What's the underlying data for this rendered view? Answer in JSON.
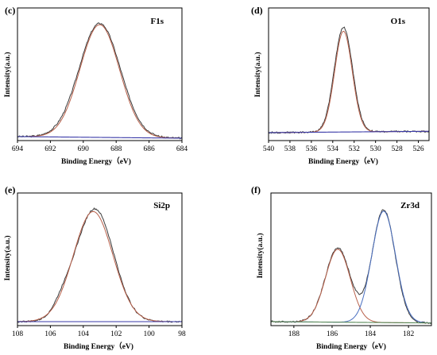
{
  "chart_data": [
    {
      "type": "line",
      "panel": "(c)",
      "title": "F1s",
      "xlabel": "Binding Energy（eV)",
      "ylabel": "Intensity(a.u.)",
      "xlim": [
        694,
        684
      ],
      "xticks": [
        694,
        692,
        690,
        688,
        686,
        684
      ],
      "series": [
        {
          "color": "#3a3a3a",
          "kind": "measured",
          "baseline": [
            0.03,
            0.018
          ],
          "peaks": [
            {
              "center": 689.0,
              "amp": 0.86,
              "sigma": 1.25
            }
          ]
        },
        {
          "color": "#b8604a",
          "kind": "fit",
          "baseline": [
            0.03,
            0.018
          ],
          "peaks": [
            {
              "center": 689.0,
              "amp": 0.85,
              "sigma": 1.2
            }
          ]
        },
        {
          "color": "#3a3aa8",
          "kind": "background",
          "baseline": [
            0.03,
            0.018
          ],
          "peaks": []
        }
      ]
    },
    {
      "type": "line",
      "panel": "(d)",
      "title": "O1s",
      "xlabel": "Binding Energy（eV)",
      "ylabel": "Intensity(a.u.)",
      "xlim": [
        540,
        525
      ],
      "xticks": [
        540,
        538,
        536,
        534,
        532,
        530,
        528,
        526
      ],
      "series": [
        {
          "color": "#3a3a3a",
          "kind": "measured",
          "baseline": [
            0.06,
            0.07
          ],
          "peaks": [
            {
              "center": 533.0,
              "amp": 0.79,
              "sigma": 0.85
            }
          ]
        },
        {
          "color": "#b8604a",
          "kind": "fit",
          "baseline": [
            0.06,
            0.07
          ],
          "peaks": [
            {
              "center": 533.0,
              "amp": 0.76,
              "sigma": 0.82
            }
          ]
        },
        {
          "color": "#3a3aa8",
          "kind": "background",
          "baseline": [
            0.06,
            0.07
          ],
          "peaks": []
        }
      ]
    },
    {
      "type": "line",
      "panel": "(e)",
      "title": "Si2p",
      "xlabel": "Binding Energy（eV)",
      "ylabel": "Intensity(a.u.)",
      "xlim": [
        108,
        98
      ],
      "xticks": [
        108,
        106,
        104,
        102,
        100,
        98
      ],
      "series": [
        {
          "color": "#3a3a3a",
          "kind": "measured",
          "baseline": [
            0.03,
            0.03
          ],
          "peaks": [
            {
              "center": 103.3,
              "amp": 0.85,
              "sigma": 1.15
            },
            {
              "center": 105.2,
              "amp": 0.08,
              "sigma": 0.6
            }
          ]
        },
        {
          "color": "#b8604a",
          "kind": "fit",
          "baseline": [
            0.03,
            0.03
          ],
          "peaks": [
            {
              "center": 103.4,
              "amp": 0.83,
              "sigma": 1.2
            }
          ]
        },
        {
          "color": "#3a3aa8",
          "kind": "background",
          "baseline": [
            0.03,
            0.03
          ],
          "peaks": []
        }
      ]
    },
    {
      "type": "line",
      "panel": "(f)",
      "title": "Zr3d",
      "xlabel": "Binding Energy（eV)",
      "ylabel": "Intensity(a.u.)",
      "xlim": [
        189.2,
        180.8
      ],
      "xticks": [
        188,
        186,
        184,
        182
      ],
      "series": [
        {
          "color": "#3a3a3a",
          "kind": "measured",
          "baseline": [
            0.03,
            0.02
          ],
          "peaks": [
            {
              "center": 185.7,
              "amp": 0.56,
              "sigma": 0.65
            },
            {
              "center": 183.3,
              "amp": 0.85,
              "sigma": 0.6
            }
          ]
        },
        {
          "color": "#b8604a",
          "kind": "fit",
          "baseline": [
            0.03,
            0.02
          ],
          "peaks": [
            {
              "center": 185.7,
              "amp": 0.55,
              "sigma": 0.65
            }
          ]
        },
        {
          "color": "#4a6fc0",
          "kind": "fit",
          "baseline": [
            0.03,
            0.02
          ],
          "peaks": [
            {
              "center": 183.3,
              "amp": 0.84,
              "sigma": 0.62
            }
          ]
        },
        {
          "color": "#5a8a5a",
          "kind": "background",
          "baseline": [
            0.03,
            0.02
          ],
          "peaks": []
        }
      ]
    }
  ]
}
